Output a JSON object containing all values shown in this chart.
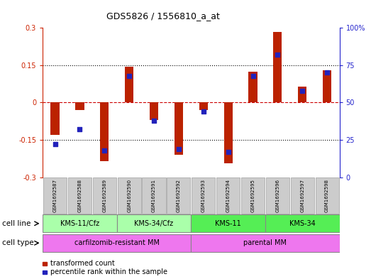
{
  "title": "GDS5826 / 1556810_a_at",
  "samples": [
    "GSM1692587",
    "GSM1692588",
    "GSM1692589",
    "GSM1692590",
    "GSM1692591",
    "GSM1692592",
    "GSM1692593",
    "GSM1692594",
    "GSM1692595",
    "GSM1692596",
    "GSM1692597",
    "GSM1692598"
  ],
  "transformed_count": [
    -0.13,
    -0.03,
    -0.235,
    0.145,
    -0.07,
    -0.21,
    -0.03,
    -0.245,
    0.125,
    0.285,
    0.065,
    0.13
  ],
  "percentile_rank": [
    22,
    32,
    18,
    68,
    38,
    19,
    44,
    17,
    68,
    82,
    58,
    70
  ],
  "cell_line_groups": [
    {
      "label": "KMS-11/Cfz",
      "start": 0,
      "end": 3,
      "color": "#aaffaa"
    },
    {
      "label": "KMS-34/Cfz",
      "start": 3,
      "end": 6,
      "color": "#aaffaa"
    },
    {
      "label": "KMS-11",
      "start": 6,
      "end": 9,
      "color": "#55ee55"
    },
    {
      "label": "KMS-34",
      "start": 9,
      "end": 12,
      "color": "#55ee55"
    }
  ],
  "cell_type_groups": [
    {
      "label": "carfilzomib-resistant MM",
      "start": 0,
      "end": 6,
      "color": "#ee77ee"
    },
    {
      "label": "parental MM",
      "start": 6,
      "end": 12,
      "color": "#ee77ee"
    }
  ],
  "bar_color": "#bb2200",
  "dot_color": "#2222bb",
  "ylim_left": [
    -0.3,
    0.3
  ],
  "ylim_right": [
    0,
    100
  ],
  "yticks_left": [
    -0.3,
    -0.15,
    0,
    0.15,
    0.3
  ],
  "yticks_right": [
    0,
    25,
    50,
    75,
    100
  ],
  "ytick_labels_left": [
    "-0.3",
    "-0.15",
    "0",
    "0.15",
    "0.3"
  ],
  "ytick_labels_right": [
    "0",
    "25",
    "50",
    "75",
    "100%"
  ],
  "hline_dotted": [
    -0.15,
    0.15
  ],
  "hline_dashed": [
    0
  ],
  "legend_items": [
    {
      "label": "transformed count",
      "color": "#bb2200"
    },
    {
      "label": "percentile rank within the sample",
      "color": "#2222bb"
    }
  ],
  "cell_line_row_label": "cell line",
  "cell_type_row_label": "cell type",
  "sample_box_color": "#cccccc",
  "sample_box_edge": "#aaaaaa",
  "bar_width": 0.35,
  "dot_size": 25
}
